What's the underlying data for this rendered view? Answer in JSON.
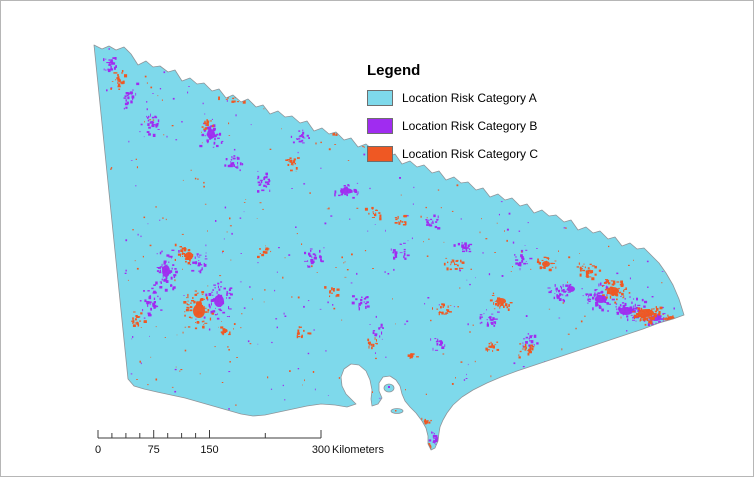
{
  "legend": {
    "title": "Legend",
    "items": [
      {
        "label": "Location Risk Category A",
        "color": "#7ED9EB"
      },
      {
        "label": "Location Risk Category B",
        "color": "#A02CF0"
      },
      {
        "label": "Location Risk Category C",
        "color": "#EF5823"
      }
    ]
  },
  "scale_bar": {
    "tick_labels": [
      "0",
      "75",
      "150",
      "300"
    ],
    "unit": "Kilometers"
  },
  "map": {
    "outline_color": "#8f9499"
  }
}
